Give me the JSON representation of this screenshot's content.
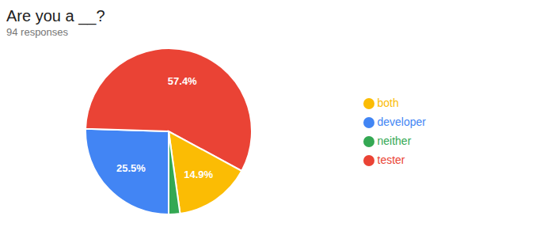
{
  "chart_data": {
    "type": "pie",
    "title": "Are you a __?",
    "subtitle": "94 responses",
    "categories": [
      "developer",
      "tester",
      "both",
      "neither"
    ],
    "values": [
      25.5,
      57.4,
      14.9,
      2.2
    ],
    "value_labels": [
      "25.5%",
      "57.4%",
      "14.9%",
      null
    ],
    "colors": [
      "#4285F4",
      "#EA4335",
      "#FBBC04",
      "#34A853"
    ],
    "data_labels": true,
    "legend": "right"
  }
}
